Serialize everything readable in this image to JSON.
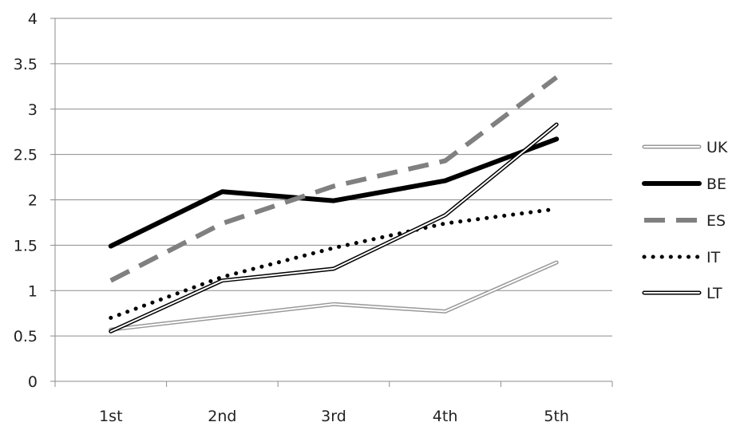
{
  "chart_data": {
    "type": "line",
    "title": "",
    "xlabel": "",
    "ylabel": "",
    "categories": [
      "1st",
      "2nd",
      "3rd",
      "4th",
      "5th"
    ],
    "ylim": [
      0,
      4
    ],
    "yticks": [
      "0",
      "0.5",
      "1",
      "1.5",
      "2",
      "2.5",
      "3",
      "3.5",
      "4"
    ],
    "grid": "horizontal",
    "legend_position": "right",
    "series": [
      {
        "name": "UK",
        "values": [
          0.57,
          0.71,
          0.85,
          0.77,
          1.31
        ],
        "style": "double",
        "color": "#999999"
      },
      {
        "name": "BE",
        "values": [
          1.49,
          2.09,
          1.99,
          2.21,
          2.67
        ],
        "style": "solid-thick",
        "color": "#000000"
      },
      {
        "name": "ES",
        "values": [
          1.11,
          1.74,
          2.15,
          2.43,
          3.35
        ],
        "style": "dashed",
        "color": "#808080"
      },
      {
        "name": "IT",
        "values": [
          0.7,
          1.15,
          1.47,
          1.74,
          1.9
        ],
        "style": "dotted",
        "color": "#000000"
      },
      {
        "name": "LT",
        "values": [
          0.55,
          1.11,
          1.24,
          1.83,
          2.83
        ],
        "style": "double",
        "color": "#000000"
      }
    ]
  }
}
